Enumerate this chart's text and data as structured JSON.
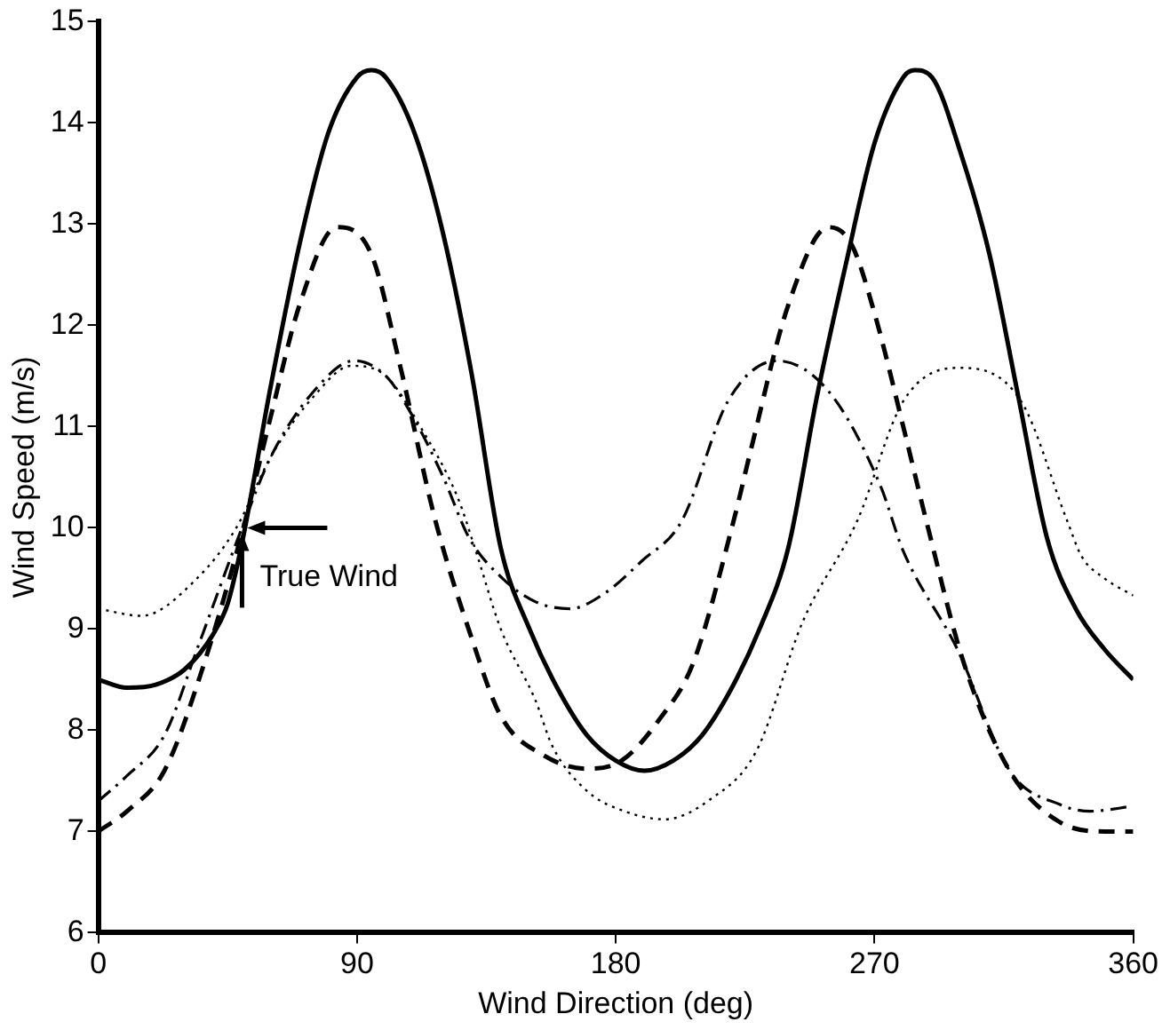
{
  "chart_data": {
    "type": "line",
    "xlabel": "Wind Direction (deg)",
    "ylabel": "Wind Speed (m/s)",
    "xlim": [
      0,
      360
    ],
    "xticks": [
      0,
      90,
      180,
      270,
      360
    ],
    "ylim": [
      6,
      15
    ],
    "yticks": [
      6,
      7,
      8,
      9,
      10,
      11,
      12,
      13,
      14,
      15
    ],
    "grid": false,
    "legend": false,
    "marker": "none",
    "annotations": [
      {
        "text": "True Wind",
        "x": 50,
        "y": 10
      }
    ],
    "series": [
      {
        "color": "#000000",
        "line_style": "solid",
        "x": [
          0,
          10,
          20,
          30,
          40,
          45,
          50,
          60,
          70,
          80,
          90,
          95,
          100,
          110,
          120,
          130,
          140,
          150,
          160,
          170,
          180,
          190,
          200,
          210,
          220,
          230,
          240,
          250,
          260,
          270,
          280,
          284,
          290,
          300,
          310,
          320,
          330,
          340,
          350,
          360
        ],
        "values": [
          8.5,
          8.42,
          8.45,
          8.6,
          8.95,
          9.25,
          9.85,
          11.4,
          12.8,
          13.9,
          14.45,
          14.52,
          14.45,
          13.9,
          12.9,
          11.5,
          9.8,
          9.0,
          8.4,
          7.95,
          7.7,
          7.6,
          7.7,
          7.95,
          8.4,
          9.0,
          9.8,
          11.3,
          12.6,
          13.8,
          14.45,
          14.52,
          14.45,
          13.7,
          12.7,
          11.3,
          9.9,
          9.2,
          8.8,
          8.5
        ]
      },
      {
        "color": "#000000",
        "line_style": "dashed",
        "x": [
          0,
          10,
          23,
          35,
          50,
          60,
          70,
          83,
          95,
          105,
          117,
          130,
          140,
          155,
          170,
          182,
          195,
          207,
          221,
          227,
          240,
          254,
          262,
          270,
          280,
          288,
          301,
          317,
          334,
          350,
          360
        ],
        "values": [
          7.0,
          7.2,
          7.6,
          8.5,
          9.95,
          11.1,
          12.2,
          12.97,
          12.7,
          11.6,
          10.1,
          8.9,
          8.14,
          7.75,
          7.62,
          7.7,
          8.1,
          8.67,
          10.07,
          10.77,
          12.2,
          12.97,
          12.8,
          12.12,
          11.0,
          10.07,
          8.67,
          7.6,
          7.1,
          7.0,
          7.0
        ]
      },
      {
        "color": "#000000",
        "line_style": "dashdot",
        "x": [
          0,
          10,
          23,
          35,
          50,
          60,
          75,
          89,
          100,
          109,
          120,
          129,
          141,
          152,
          164,
          176,
          189,
          203,
          219,
          236,
          254,
          272,
          280,
          299,
          317,
          335,
          345,
          360
        ],
        "values": [
          7.3,
          7.55,
          7.95,
          8.85,
          10.0,
          10.7,
          11.35,
          11.65,
          11.5,
          11.12,
          10.5,
          9.9,
          9.49,
          9.27,
          9.2,
          9.35,
          9.67,
          10.07,
          11.25,
          11.65,
          11.35,
          10.42,
          9.77,
          8.79,
          7.6,
          7.26,
          7.2,
          7.25
        ]
      },
      {
        "color": "#000000",
        "line_style": "dotted",
        "x": [
          0,
          15,
          34,
          48,
          60,
          75,
          88,
          100,
          112,
          125,
          131,
          140,
          152,
          158,
          170,
          183,
          197,
          212,
          229,
          245,
          264,
          280,
          299,
          321,
          337,
          342,
          350,
          360
        ],
        "values": [
          9.2,
          9.13,
          9.49,
          10.0,
          10.7,
          11.3,
          11.6,
          11.5,
          11.0,
          10.3,
          9.8,
          9.0,
          8.3,
          7.84,
          7.4,
          7.2,
          7.12,
          7.3,
          7.8,
          9.07,
          10.07,
          11.25,
          11.58,
          11.25,
          10.07,
          9.72,
          9.5,
          9.33
        ]
      }
    ]
  }
}
